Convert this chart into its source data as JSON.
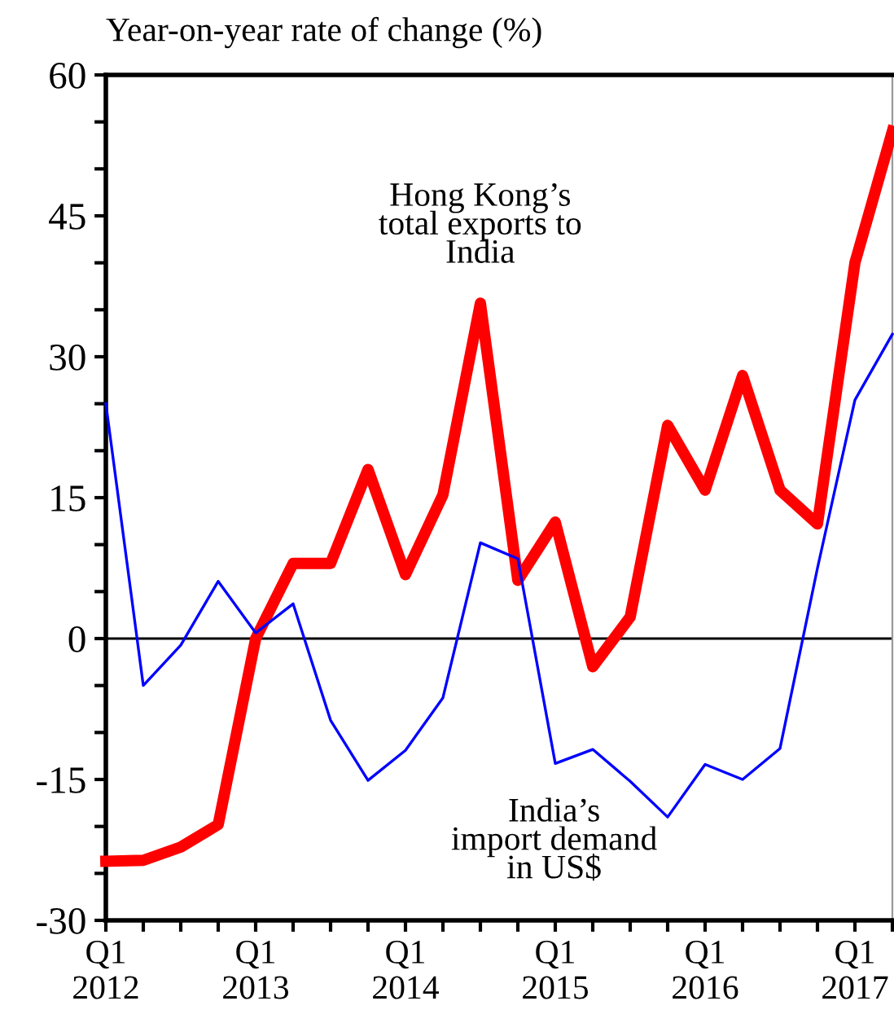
{
  "chart_data": {
    "type": "line",
    "ylabel": "Year-on-year rate of change (%)",
    "categories": [
      "Q1\n2012",
      null,
      null,
      null,
      "Q1\n2013",
      null,
      null,
      null,
      "Q1\n2014",
      null,
      null,
      null,
      "Q1\n2015",
      null,
      null,
      null,
      "Q1\n2016",
      null,
      null,
      null,
      "Q1\n2017",
      null
    ],
    "series": [
      {
        "name": "Hong Kong’s\ntotal exports to\nIndia",
        "color": "#ff0000",
        "values": [
          -23.7,
          -23.6,
          -22.2,
          -19.8,
          0,
          8,
          8,
          18,
          6.8,
          15.3,
          35.7,
          6.2,
          12.4,
          -3,
          2.3,
          22.7,
          15.8,
          28,
          15.8,
          12.2,
          40,
          54
        ]
      },
      {
        "name": "India’s\nimport demand\nin US$",
        "color": "#0000ff",
        "values": [
          25,
          -5,
          -0.7,
          6.1,
          0.6,
          3.7,
          -8.7,
          -15.1,
          -11.9,
          -6.3,
          10.2,
          8.5,
          -13.3,
          -11.8,
          -15.2,
          -19,
          -13.4,
          -15,
          -11.7,
          7.5,
          25.4,
          32.4
        ]
      }
    ],
    "ylim": [
      -30,
      60
    ],
    "yticks": [
      -30,
      {
        "value": -25,
        "label": null
      },
      {
        "value": -20,
        "label": null
      },
      -15,
      {
        "value": -10,
        "label": null
      },
      {
        "value": -5,
        "label": null
      },
      0,
      {
        "value": 5,
        "label": null
      },
      {
        "value": 10,
        "label": null
      },
      15,
      {
        "value": 20,
        "label": null
      },
      {
        "value": 25,
        "label": null
      },
      30,
      {
        "value": 35,
        "label": null
      },
      {
        "value": 40,
        "label": null
      },
      45,
      {
        "value": 50,
        "label": null
      },
      {
        "value": 55,
        "label": null
      },
      60
    ],
    "ref_lines": [
      {
        "axis": "y",
        "value": 0,
        "color": "#000000"
      }
    ],
    "grid": false,
    "legend": false,
    "marker": "none",
    "line_style": "solid"
  }
}
